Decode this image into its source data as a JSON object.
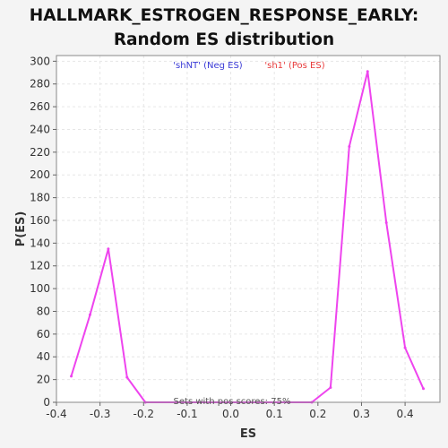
{
  "chart_data": {
    "type": "line",
    "title_line1": "HALLMARK_ESTROGEN_RESPONSE_EARLY:",
    "title_line2": "Random ES distribution",
    "xlabel": "ES",
    "ylabel": "P(ES)",
    "xlim": [
      -0.4,
      0.48
    ],
    "ylim": [
      0,
      305
    ],
    "x_ticks": [
      -0.4,
      -0.3,
      -0.2,
      -0.1,
      0.0,
      0.1,
      0.2,
      0.3,
      0.4
    ],
    "x_tick_labels": [
      "-0.4",
      "-0.3",
      "-0.2",
      "-0.1",
      "0.0",
      "0.1",
      "0.2",
      "0.3",
      "0.4"
    ],
    "y_ticks": [
      0,
      20,
      40,
      60,
      80,
      100,
      120,
      140,
      160,
      180,
      200,
      220,
      240,
      260,
      280,
      300
    ],
    "y_tick_labels": [
      "0",
      "20",
      "40",
      "60",
      "80",
      "100",
      "120",
      "140",
      "160",
      "180",
      "200",
      "220",
      "240",
      "260",
      "280",
      "300"
    ],
    "grid": true,
    "series": [
      {
        "color": "#ee44ee",
        "x": [
          -0.366,
          -0.323,
          -0.281,
          -0.238,
          -0.196,
          0.186,
          0.229,
          0.272,
          0.314,
          0.357,
          0.4,
          0.442
        ],
        "y": [
          23,
          77,
          135,
          22,
          0,
          0,
          13,
          225,
          291,
          158,
          48,
          12
        ]
      }
    ],
    "legend": [
      {
        "text": "'shNT' (Neg ES)",
        "color": "#3a3ad6"
      },
      {
        "text": "'sh1' (Pos ES)",
        "color": "#e83a3a"
      }
    ],
    "legend_placement": "top",
    "annotation": "Sets with pos scores: 75%"
  }
}
